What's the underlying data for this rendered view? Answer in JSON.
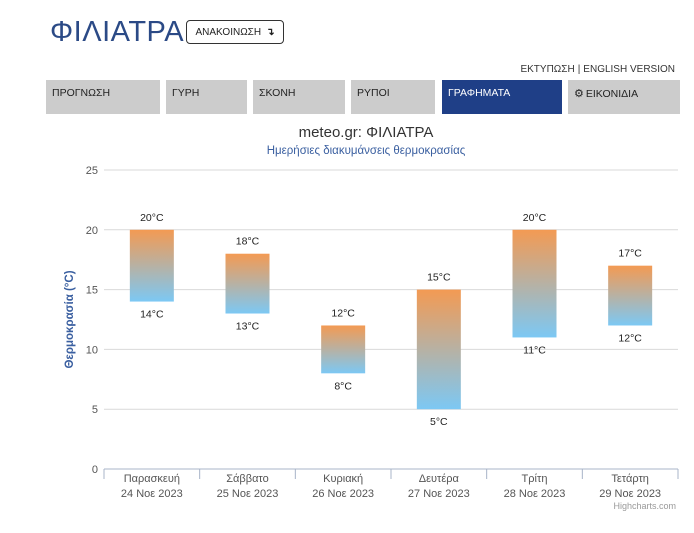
{
  "header": {
    "title": "ΦΙΛΙΑΤΡΑ",
    "announce_label": "ΑΝΑΚΟΙΝΩΣΗ",
    "announce_arrow": "↴",
    "print_label": "ΕΚΤΥΠΩΣΗ",
    "separator": "|",
    "english_label": "ENGLISH VERSION"
  },
  "tabs": [
    {
      "label": "ΠΡΟΓΝΩΣΗ",
      "active": false
    },
    {
      "label": "ΓΥΡΗ",
      "active": false
    },
    {
      "label": "ΣΚΟΝΗ",
      "active": false
    },
    {
      "label": "ΡΥΠΟΙ",
      "active": false
    },
    {
      "label": "ΓΡΑΦΗΜΑΤΑ",
      "active": true
    },
    {
      "label": "ΕΙΚΟΝΙΔΙΑ",
      "active": false,
      "icon": "gear-icon"
    }
  ],
  "colors": {
    "brand": "#2b4a86",
    "active_tab": "#1f3f87",
    "tab_bg": "#cccccc",
    "bar_top": "#f39a53",
    "bar_bottom": "#7cc8f4"
  },
  "chart_data": {
    "type": "columnrange",
    "title": "meteo.gr: ΦΙΛΙΑΤΡΑ",
    "subtitle": "Ημερήσιες διακυμάνσεις θερμοκρασίας",
    "ylabel": "Θερμοκρασία (°C)",
    "ylim": [
      0,
      25
    ],
    "yticks": [
      0,
      5,
      10,
      15,
      20,
      25
    ],
    "grid": true,
    "unit": "°C",
    "categories": [
      {
        "day": "Παρασκευή",
        "date": "24 Νοε 2023"
      },
      {
        "day": "Σάββατο",
        "date": "25 Νοε 2023"
      },
      {
        "day": "Κυριακή",
        "date": "26 Νοε 2023"
      },
      {
        "day": "Δευτέρα",
        "date": "27 Νοε 2023"
      },
      {
        "day": "Τρίτη",
        "date": "28 Νοε 2023"
      },
      {
        "day": "Τετάρτη",
        "date": "29 Νοε 2023"
      }
    ],
    "min": [
      14,
      13,
      8,
      5,
      11,
      12
    ],
    "max": [
      20,
      18,
      12,
      15,
      20,
      17
    ],
    "credit": "Highcharts.com"
  }
}
